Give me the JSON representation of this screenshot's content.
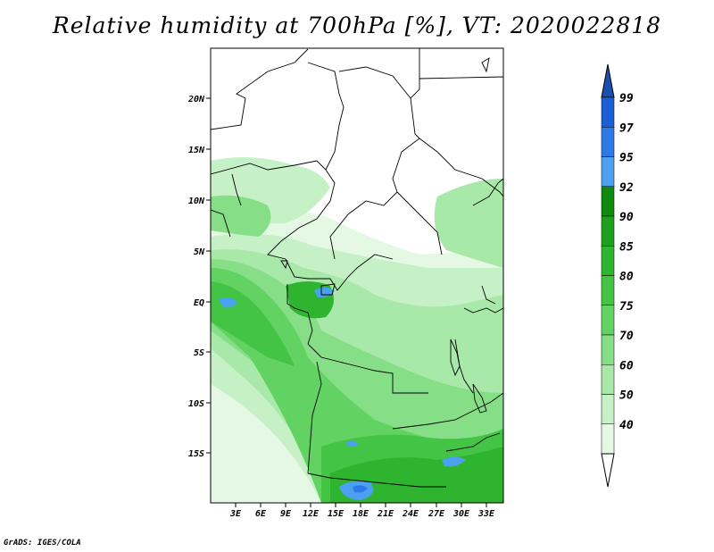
{
  "title": "Relative humidity at 700hPa [%], VT: 2020022818",
  "credit": "GrADS: IGES/COLA",
  "map": {
    "lon_range": [
      0,
      36
    ],
    "lat_range": [
      -20,
      24
    ],
    "lat_ticks": [
      "20N",
      "15N",
      "10N",
      "5N",
      "EQ",
      "5S",
      "10S",
      "15S"
    ],
    "lon_ticks": [
      "3E",
      "6E",
      "9E",
      "12E",
      "15E",
      "18E",
      "21E",
      "24E",
      "27E",
      "30E",
      "33E"
    ]
  },
  "colorbar": {
    "levels": [
      "99",
      "97",
      "95",
      "92",
      "90",
      "85",
      "80",
      "75",
      "70",
      "60",
      "50",
      "40"
    ],
    "colors": [
      "#1a5fd6",
      "#2d7ae6",
      "#4da0f0",
      "#0f8a0f",
      "#1ea01e",
      "#2fb42f",
      "#44c444",
      "#62d262",
      "#86de86",
      "#a8e8a8",
      "#c6f1c6",
      "#e4f8e4"
    ],
    "arrow_top_color": "#1a4fb0",
    "arrow_bottom_color": "#ffffff"
  }
}
